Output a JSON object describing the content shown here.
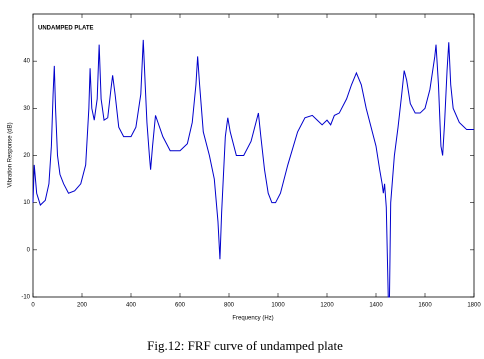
{
  "chart_data": {
    "type": "line",
    "annotation": "UNDAMPED PLATE",
    "xlabel": "Frequency (Hz)",
    "ylabel": "Vibration Response (dB)",
    "caption": "Fig.12: FRF curve of undamped plate",
    "color": "#0000cc",
    "annotation_color": "#cc00cc",
    "xlim": [
      0,
      1800
    ],
    "ylim": [
      -10,
      50
    ],
    "xticks": [
      0,
      200,
      400,
      600,
      800,
      1000,
      1200,
      1400,
      1600,
      1800
    ],
    "yticks": [
      -10,
      0,
      10,
      20,
      30,
      40
    ],
    "x": [
      0,
      5,
      15,
      30,
      50,
      65,
      75,
      82,
      87,
      92,
      100,
      110,
      125,
      145,
      170,
      195,
      215,
      228,
      233,
      240,
      250,
      262,
      270,
      278,
      290,
      305,
      318,
      325,
      335,
      350,
      370,
      400,
      420,
      440,
      450,
      458,
      465,
      475,
      480,
      488,
      500,
      510,
      530,
      560,
      600,
      630,
      650,
      665,
      672,
      680,
      695,
      720,
      740,
      755,
      763,
      770,
      785,
      795,
      805,
      830,
      860,
      890,
      910,
      920,
      930,
      945,
      960,
      975,
      990,
      1010,
      1040,
      1080,
      1110,
      1140,
      1160,
      1180,
      1200,
      1215,
      1230,
      1250,
      1280,
      1300,
      1320,
      1340,
      1360,
      1380,
      1400,
      1415,
      1425,
      1430,
      1435,
      1442,
      1450,
      1455,
      1460,
      1475,
      1490,
      1505,
      1515,
      1525,
      1540,
      1560,
      1580,
      1600,
      1620,
      1640,
      1645,
      1655,
      1665,
      1672,
      1680,
      1690,
      1697,
      1705,
      1715,
      1740,
      1770,
      1800
    ],
    "values": [
      10,
      18,
      12,
      9.5,
      10.5,
      14,
      22,
      33,
      39,
      30,
      20,
      16,
      14,
      12,
      12.5,
      14,
      18,
      30,
      38.5,
      30,
      27.5,
      32,
      43.5,
      32,
      27.5,
      28,
      34,
      37,
      33,
      26,
      24,
      24,
      26,
      33,
      44.5,
      35,
      27,
      20,
      17,
      22,
      28.5,
      27,
      24,
      21,
      21,
      22.5,
      27,
      35,
      41,
      35,
      25,
      20,
      15,
      6,
      -2,
      8,
      24,
      28,
      25,
      20,
      20,
      23,
      27,
      29,
      24,
      17,
      12,
      10,
      10,
      12,
      18,
      25,
      28,
      28.5,
      27.5,
      26.5,
      27.5,
      26.5,
      28.5,
      29,
      32,
      35,
      37.5,
      35,
      30,
      26,
      22,
      17,
      14,
      12,
      14,
      9,
      -10,
      -10,
      10,
      20,
      26,
      33,
      38,
      36,
      31,
      29,
      29,
      30,
      34,
      41,
      43.5,
      35,
      22,
      20,
      27,
      38,
      44,
      35,
      30,
      27,
      25.5,
      25.5
    ]
  }
}
